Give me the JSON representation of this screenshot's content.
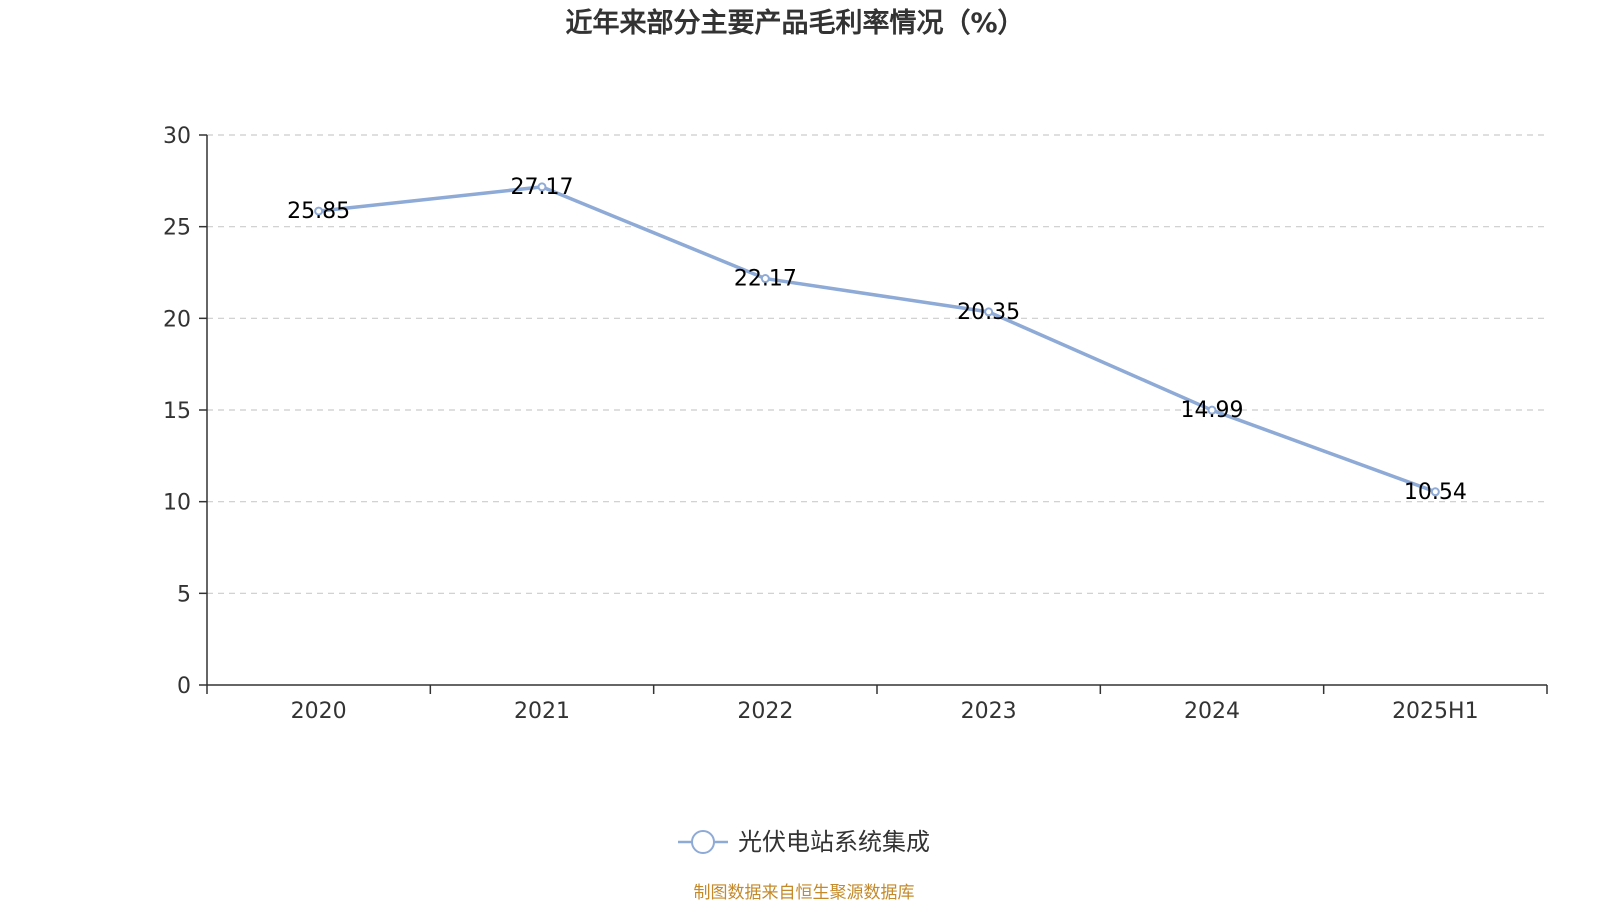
{
  "chart_data": {
    "type": "line",
    "title": "近年来部分主要产品毛利率情况（%）",
    "categories": [
      "2020",
      "2021",
      "2022",
      "2023",
      "2024",
      "2025H1"
    ],
    "series": [
      {
        "name": "光伏电站系统集成",
        "values": [
          25.85,
          27.17,
          22.17,
          20.35,
          14.99,
          10.54
        ],
        "color": "#8eaad6"
      }
    ],
    "yticks": [
      0,
      5,
      10,
      15,
      20,
      25,
      30
    ],
    "ylim": [
      0,
      30
    ],
    "grid": true,
    "legend_position": "bottom-center",
    "source": "制图数据来自恒生聚源数据库"
  },
  "colors": {
    "source_text": "#c48a2a",
    "axis": "#333333",
    "grid": "#cccccc"
  }
}
